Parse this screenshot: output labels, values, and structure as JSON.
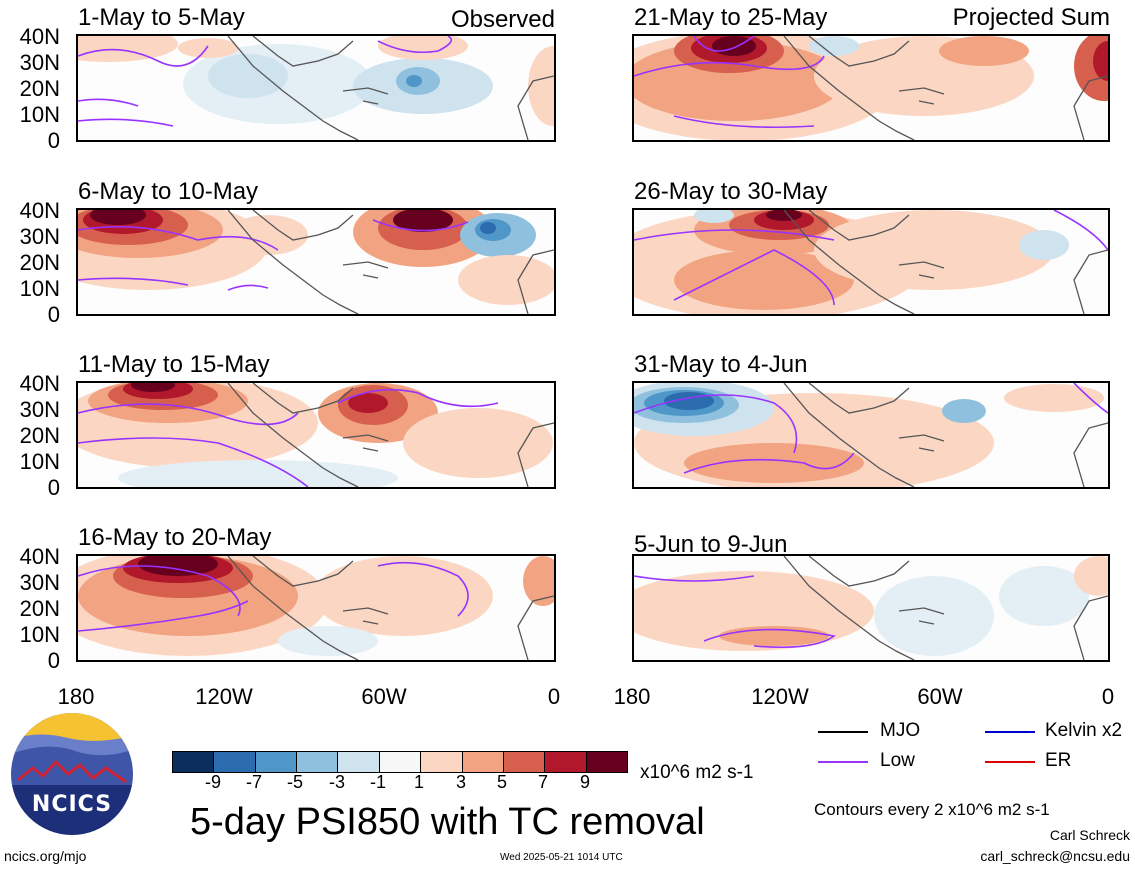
{
  "panels": {
    "left": [
      {
        "title": "1-May to 5-May",
        "tag": "Observed"
      },
      {
        "title": "6-May to 10-May",
        "tag": ""
      },
      {
        "title": "11-May to 15-May",
        "tag": ""
      },
      {
        "title": "16-May to 20-May",
        "tag": ""
      }
    ],
    "right": [
      {
        "title": "21-May to 25-May",
        "tag": "Projected Sum"
      },
      {
        "title": "26-May to 30-May",
        "tag": ""
      },
      {
        "title": "31-May to 4-Jun",
        "tag": ""
      },
      {
        "title": "5-Jun to 9-Jun",
        "tag": ""
      }
    ]
  },
  "axes": {
    "lat_labels": [
      "40N",
      "30N",
      "20N",
      "10N",
      "0"
    ],
    "lon_labels": [
      "180",
      "120W",
      "60W",
      "0"
    ]
  },
  "colorbar": {
    "labels": [
      "-9",
      "-7",
      "-5",
      "-3",
      "-1",
      "1",
      "3",
      "5",
      "7",
      "9"
    ],
    "colors": [
      "#0b2e5e",
      "#2b6cae",
      "#4f97c8",
      "#8fc0de",
      "#cfe3ef",
      "#f7f7f7",
      "#fbd7c3",
      "#f2a482",
      "#d6604d",
      "#b2182b",
      "#67001f"
    ],
    "units": "x10^6 m2 s-1"
  },
  "main_title": "5-day PSI850 with TC removal",
  "legend": {
    "mjo": {
      "label": "MJO",
      "color": "#000000"
    },
    "kelvin": {
      "label": "Kelvin x2",
      "color": "#0000cc"
    },
    "low": {
      "label": "Low",
      "color": "#9933ff"
    },
    "er": {
      "label": "ER",
      "color": "#dd0000"
    }
  },
  "contour_note": "Contours every 2 x10^6 m2 s-1",
  "footer": {
    "url": "ncics.org/mjo",
    "timestamp": "Wed 2025-05-21 1014 UTC",
    "author": "Carl Schreck",
    "email": "carl_schreck@ncsu.edu"
  },
  "logo": {
    "text": "NCICS"
  }
}
